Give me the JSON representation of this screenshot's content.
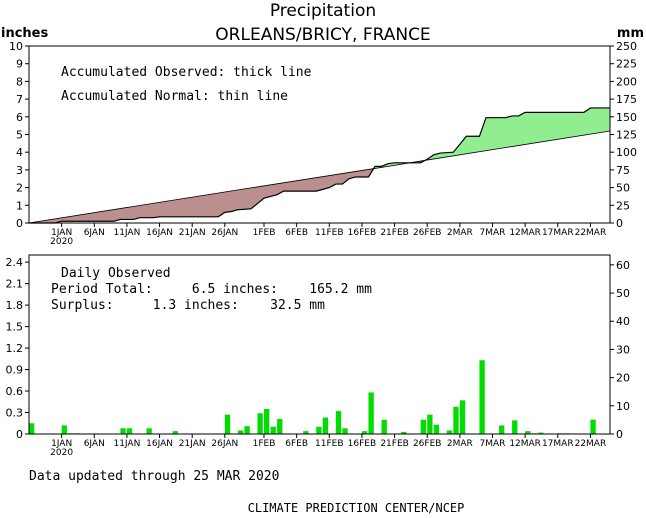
{
  "header": {
    "title": "Precipitation",
    "subtitle": "ORLEANS/BRICY, FRANCE",
    "left_unit": "inches",
    "right_unit": "mm"
  },
  "top_panel": {
    "legend_observed": "Accumulated Observed: thick line",
    "legend_normal": "Accumulated Normal: thin line"
  },
  "bottom_panel": {
    "label": "Daily Observed",
    "period_total": "Period Total:     6.5 inches:    165.2 mm",
    "surplus": "Surplus:     1.3 inches:    32.5 mm"
  },
  "footer": {
    "updated": "Data updated through 25 MAR 2020",
    "credit": "CLIMATE PREDICTION CENTER/NCEP"
  },
  "chart_data": [
    {
      "type": "area",
      "name": "accumulated",
      "x_start": "2019-12-27",
      "x_end": "2020-03-25",
      "x_tick_labels": [
        "1JAN",
        "6JAN",
        "11JAN",
        "16JAN",
        "21JAN",
        "26JAN",
        "1FEB",
        "6FEB",
        "11FEB",
        "16FEB",
        "21FEB",
        "26FEB",
        "2MAR",
        "7MAR",
        "12MAR",
        "17MAR",
        "22MAR"
      ],
      "x_tick_dates": [
        "2020-01-01",
        "2020-01-06",
        "2020-01-11",
        "2020-01-16",
        "2020-01-21",
        "2020-01-26",
        "2020-02-01",
        "2020-02-06",
        "2020-02-11",
        "2020-02-16",
        "2020-02-21",
        "2020-02-26",
        "2020-03-02",
        "2020-03-07",
        "2020-03-12",
        "2020-03-17",
        "2020-03-22"
      ],
      "year_label": "2020",
      "ylim": [
        0,
        10
      ],
      "y_ticks": [
        0,
        1,
        2,
        3,
        4,
        5,
        6,
        7,
        8,
        9,
        10
      ],
      "y2lim": [
        0,
        250
      ],
      "y2_ticks": [
        0,
        25,
        50,
        75,
        100,
        125,
        150,
        175,
        200,
        225,
        250
      ],
      "deficit_color": "#bc8f8f",
      "surplus_color": "#90ee90",
      "normal": [
        {
          "x": "2019-12-27",
          "y": 0.0
        },
        {
          "x": "2020-01-26",
          "y": 1.75
        },
        {
          "x": "2020-02-20",
          "y": 3.2
        },
        {
          "x": "2020-02-25",
          "y": 3.5
        },
        {
          "x": "2020-03-25",
          "y": 5.2
        }
      ],
      "observed": [
        {
          "x": "2019-12-27",
          "y": 0.0
        },
        {
          "x": "2019-12-31",
          "y": 0.0
        },
        {
          "x": "2020-01-01",
          "y": 0.1
        },
        {
          "x": "2020-01-03",
          "y": 0.1
        },
        {
          "x": "2020-01-09",
          "y": 0.1
        },
        {
          "x": "2020-01-10",
          "y": 0.2
        },
        {
          "x": "2020-01-12",
          "y": 0.2
        },
        {
          "x": "2020-01-13",
          "y": 0.3
        },
        {
          "x": "2020-01-15",
          "y": 0.3
        },
        {
          "x": "2020-01-16",
          "y": 0.35
        },
        {
          "x": "2020-01-25",
          "y": 0.35
        },
        {
          "x": "2020-01-26",
          "y": 0.6
        },
        {
          "x": "2020-01-27",
          "y": 0.65
        },
        {
          "x": "2020-01-28",
          "y": 0.75
        },
        {
          "x": "2020-01-30",
          "y": 0.8
        },
        {
          "x": "2020-01-31",
          "y": 1.1
        },
        {
          "x": "2020-02-01",
          "y": 1.4
        },
        {
          "x": "2020-02-03",
          "y": 1.6
        },
        {
          "x": "2020-02-04",
          "y": 1.8
        },
        {
          "x": "2020-02-09",
          "y": 1.8
        },
        {
          "x": "2020-02-10",
          "y": 1.9
        },
        {
          "x": "2020-02-11",
          "y": 2.0
        },
        {
          "x": "2020-02-12",
          "y": 2.2
        },
        {
          "x": "2020-02-13",
          "y": 2.2
        },
        {
          "x": "2020-02-14",
          "y": 2.5
        },
        {
          "x": "2020-02-15",
          "y": 2.6
        },
        {
          "x": "2020-02-17",
          "y": 2.6
        },
        {
          "x": "2020-02-18",
          "y": 3.2
        },
        {
          "x": "2020-02-19",
          "y": 3.2
        },
        {
          "x": "2020-02-20",
          "y": 3.35
        },
        {
          "x": "2020-02-21",
          "y": 3.4
        },
        {
          "x": "2020-02-25",
          "y": 3.4
        },
        {
          "x": "2020-02-26",
          "y": 3.6
        },
        {
          "x": "2020-02-27",
          "y": 3.85
        },
        {
          "x": "2020-02-28",
          "y": 3.95
        },
        {
          "x": "2020-03-01",
          "y": 4.0
        },
        {
          "x": "2020-03-02",
          "y": 4.45
        },
        {
          "x": "2020-03-03",
          "y": 4.9
        },
        {
          "x": "2020-03-05",
          "y": 4.9
        },
        {
          "x": "2020-03-06",
          "y": 5.95
        },
        {
          "x": "2020-03-09",
          "y": 5.95
        },
        {
          "x": "2020-03-10",
          "y": 6.05
        },
        {
          "x": "2020-03-11",
          "y": 6.05
        },
        {
          "x": "2020-03-12",
          "y": 6.25
        },
        {
          "x": "2020-03-15",
          "y": 6.25
        },
        {
          "x": "2020-03-21",
          "y": 6.25
        },
        {
          "x": "2020-03-22",
          "y": 6.5
        },
        {
          "x": "2020-03-25",
          "y": 6.5
        }
      ]
    },
    {
      "type": "bar",
      "name": "daily",
      "x_start": "2019-12-27",
      "x_end": "2020-03-25",
      "ylim": [
        0,
        2.5
      ],
      "y_ticks": [
        0,
        0.3,
        0.6,
        0.9,
        1.2,
        1.5,
        1.8,
        2.1,
        2.4
      ],
      "y_tick_labels": [
        "0",
        "0.3",
        "0.6",
        "0.9",
        "1.2",
        "1.5",
        "1.8",
        "2.1",
        "2.4"
      ],
      "y2lim": [
        0,
        63.5
      ],
      "y2_ticks": [
        0,
        10,
        20,
        30,
        40,
        50,
        60
      ],
      "bar_color": "#00dd00",
      "bars": [
        {
          "x": "2019-12-27",
          "y": 0.15
        },
        {
          "x": "2020-01-01",
          "y": 0.12
        },
        {
          "x": "2020-01-02",
          "y": 0.01
        },
        {
          "x": "2020-01-03",
          "y": 0.01
        },
        {
          "x": "2020-01-10",
          "y": 0.08
        },
        {
          "x": "2020-01-11",
          "y": 0.08
        },
        {
          "x": "2020-01-14",
          "y": 0.08
        },
        {
          "x": "2020-01-18",
          "y": 0.04
        },
        {
          "x": "2020-01-26",
          "y": 0.27
        },
        {
          "x": "2020-01-28",
          "y": 0.05
        },
        {
          "x": "2020-01-29",
          "y": 0.11
        },
        {
          "x": "2020-01-31",
          "y": 0.29
        },
        {
          "x": "2020-02-01",
          "y": 0.35
        },
        {
          "x": "2020-02-02",
          "y": 0.1
        },
        {
          "x": "2020-02-03",
          "y": 0.21
        },
        {
          "x": "2020-02-07",
          "y": 0.04
        },
        {
          "x": "2020-02-09",
          "y": 0.1
        },
        {
          "x": "2020-02-10",
          "y": 0.23
        },
        {
          "x": "2020-02-12",
          "y": 0.32
        },
        {
          "x": "2020-02-13",
          "y": 0.08
        },
        {
          "x": "2020-02-16",
          "y": 0.04
        },
        {
          "x": "2020-02-17",
          "y": 0.58
        },
        {
          "x": "2020-02-19",
          "y": 0.2
        },
        {
          "x": "2020-02-22",
          "y": 0.03
        },
        {
          "x": "2020-02-25",
          "y": 0.2
        },
        {
          "x": "2020-02-26",
          "y": 0.27
        },
        {
          "x": "2020-02-27",
          "y": 0.13
        },
        {
          "x": "2020-02-29",
          "y": 0.05
        },
        {
          "x": "2020-03-01",
          "y": 0.38
        },
        {
          "x": "2020-03-02",
          "y": 0.47
        },
        {
          "x": "2020-03-05",
          "y": 1.03
        },
        {
          "x": "2020-03-08",
          "y": 0.12
        },
        {
          "x": "2020-03-10",
          "y": 0.19
        },
        {
          "x": "2020-03-12",
          "y": 0.04
        },
        {
          "x": "2020-03-13",
          "y": 0.01
        },
        {
          "x": "2020-03-14",
          "y": 0.02
        },
        {
          "x": "2020-03-17",
          "y": 0.01
        },
        {
          "x": "2020-03-18",
          "y": 0.01
        },
        {
          "x": "2020-03-22",
          "y": 0.2
        }
      ]
    }
  ]
}
